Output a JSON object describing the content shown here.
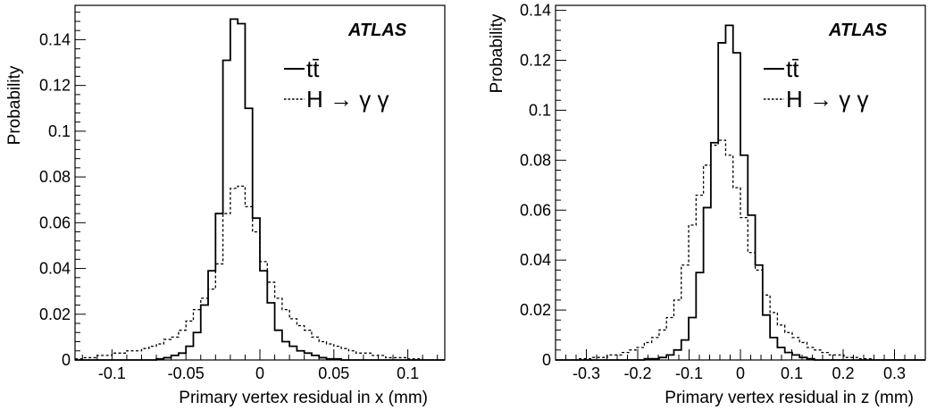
{
  "chart_data": [
    {
      "type": "histogram",
      "experiment_label": "ATLAS",
      "xlabel": "Primary vertex residual in x (mm)",
      "ylabel": "Probability",
      "xlim": [
        -0.125,
        0.125
      ],
      "ylim": [
        0,
        0.155
      ],
      "xticks": [
        -0.1,
        -0.05,
        0,
        0.05,
        0.1
      ],
      "xtick_labels": [
        "-0.1",
        "-0.05",
        "0",
        "0.05",
        "0.1"
      ],
      "yticks": [
        0,
        0.02,
        0.04,
        0.06,
        0.08,
        0.1,
        0.12,
        0.14
      ],
      "ytick_labels": [
        "0",
        "0.02",
        "0.04",
        "0.06",
        "0.08",
        "0.1",
        "0.12",
        "0.14"
      ],
      "bin_edges_start": -0.125,
      "bin_width": 0.005,
      "legend_position": "top-right",
      "series": [
        {
          "name": "tt̄",
          "line_style": "solid",
          "values": [
            0,
            0,
            0,
            0,
            0,
            0,
            0,
            0,
            0,
            0,
            0,
            0.0005,
            0.001,
            0.002,
            0.003,
            0.006,
            0.012,
            0.024,
            0.039,
            0.064,
            0.131,
            0.149,
            0.147,
            0.11,
            0.062,
            0.039,
            0.025,
            0.013,
            0.008,
            0.006,
            0.004,
            0.003,
            0.002,
            0.001,
            0.0005,
            0.0005,
            0,
            0,
            0,
            0,
            0,
            0,
            0,
            0,
            0,
            0,
            0,
            0,
            0,
            0
          ]
        },
        {
          "name": "H → γ γ",
          "line_style": "dashed",
          "values": [
            0.0005,
            0.001,
            0.001,
            0.002,
            0.002,
            0.003,
            0.003,
            0.004,
            0.004,
            0.005,
            0.006,
            0.007,
            0.009,
            0.01,
            0.013,
            0.017,
            0.022,
            0.027,
            0.031,
            0.042,
            0.064,
            0.075,
            0.076,
            0.067,
            0.056,
            0.043,
            0.034,
            0.027,
            0.022,
            0.018,
            0.015,
            0.013,
            0.01,
            0.008,
            0.007,
            0.006,
            0.005,
            0.004,
            0.003,
            0.003,
            0.002,
            0.002,
            0.001,
            0.001,
            0.001,
            0.0005,
            0.0005,
            0,
            0,
            0
          ]
        }
      ]
    },
    {
      "type": "histogram",
      "experiment_label": "ATLAS",
      "xlabel": "Primary vertex residual in z (mm)",
      "ylabel": "Probability",
      "xlim": [
        -0.36,
        0.36
      ],
      "ylim": [
        0,
        0.142
      ],
      "xticks": [
        -0.3,
        -0.2,
        -0.1,
        0,
        0.1,
        0.2,
        0.3
      ],
      "xtick_labels": [
        "-0.3",
        "-0.2",
        "-0.1",
        "0",
        "0.1",
        "0.2",
        "0.3"
      ],
      "yticks": [
        0,
        0.02,
        0.04,
        0.06,
        0.08,
        0.1,
        0.12,
        0.14
      ],
      "ytick_labels": [
        "0",
        "0.02",
        "0.04",
        "0.06",
        "0.08",
        "0.1",
        "0.12",
        "0.14"
      ],
      "bin_edges_start": -0.36,
      "bin_width": 0.0144,
      "legend_position": "top-right",
      "series": [
        {
          "name": "tt̄",
          "line_style": "solid",
          "values": [
            0,
            0,
            0,
            0,
            0,
            0,
            0,
            0,
            0,
            0,
            0,
            0,
            0.0005,
            0.0005,
            0.001,
            0.002,
            0.004,
            0.008,
            0.017,
            0.035,
            0.061,
            0.087,
            0.127,
            0.134,
            0.123,
            0.082,
            0.058,
            0.038,
            0.018,
            0.009,
            0.005,
            0.003,
            0.002,
            0.001,
            0.0005,
            0,
            0,
            0,
            0,
            0,
            0,
            0,
            0,
            0,
            0,
            0,
            0,
            0,
            0,
            0
          ]
        },
        {
          "name": "H → γ γ",
          "line_style": "dashed",
          "values": [
            0,
            0,
            0,
            0.0005,
            0.0005,
            0.001,
            0.001,
            0.002,
            0.002,
            0.003,
            0.004,
            0.005,
            0.007,
            0.009,
            0.012,
            0.017,
            0.024,
            0.038,
            0.054,
            0.066,
            0.078,
            0.086,
            0.088,
            0.082,
            0.069,
            0.057,
            0.043,
            0.036,
            0.026,
            0.019,
            0.014,
            0.011,
            0.009,
            0.007,
            0.005,
            0.004,
            0.003,
            0.002,
            0.002,
            0.001,
            0.001,
            0.0005,
            0.0005,
            0,
            0,
            0,
            0,
            0,
            0,
            0
          ]
        }
      ]
    }
  ]
}
